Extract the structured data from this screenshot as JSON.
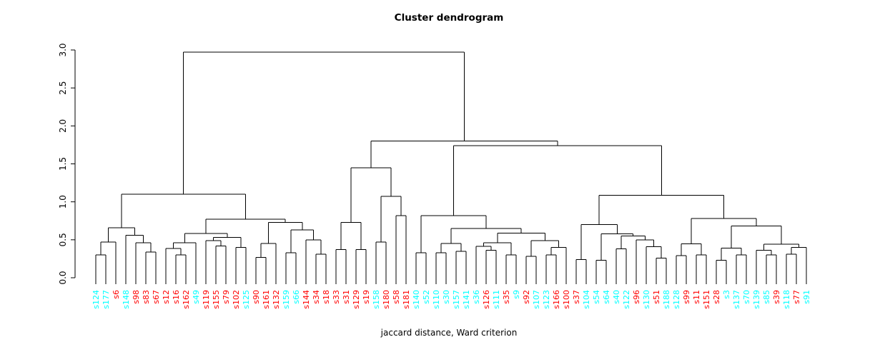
{
  "title": "Cluster dendrogram",
  "subtitle": "jaccard distance, Ward criterion",
  "colors": {
    "line": "#000000",
    "red": "#FF0000",
    "cyan": "#00FFFF",
    "background": "#FFFFFF"
  },
  "y_axis": {
    "ticks": [
      "0.0",
      "0.5",
      "1.0",
      "1.5",
      "2.0",
      "2.5",
      "3.0"
    ],
    "min": 0,
    "max": 3
  },
  "chart_data": {
    "type": "dendrogram",
    "ylim": [
      0,
      3
    ],
    "root_height": 2.97,
    "leaves": [
      {
        "label": "s124",
        "color": "cyan"
      },
      {
        "label": "s177",
        "color": "cyan"
      },
      {
        "label": "s6",
        "color": "red"
      },
      {
        "label": "s148",
        "color": "cyan"
      },
      {
        "label": "s98",
        "color": "red"
      },
      {
        "label": "s83",
        "color": "red"
      },
      {
        "label": "s67",
        "color": "red"
      },
      {
        "label": "s12",
        "color": "red"
      },
      {
        "label": "s16",
        "color": "red"
      },
      {
        "label": "s162",
        "color": "red"
      },
      {
        "label": "s49",
        "color": "cyan"
      },
      {
        "label": "s119",
        "color": "red"
      },
      {
        "label": "s155",
        "color": "red"
      },
      {
        "label": "s79",
        "color": "red"
      },
      {
        "label": "s102",
        "color": "red"
      },
      {
        "label": "s125",
        "color": "cyan"
      },
      {
        "label": "s90",
        "color": "red"
      },
      {
        "label": "s161",
        "color": "red"
      },
      {
        "label": "s132",
        "color": "red"
      },
      {
        "label": "s159",
        "color": "cyan"
      },
      {
        "label": "s66",
        "color": "cyan"
      },
      {
        "label": "s144",
        "color": "red"
      },
      {
        "label": "s34",
        "color": "red"
      },
      {
        "label": "s18",
        "color": "red"
      },
      {
        "label": "s33",
        "color": "red"
      },
      {
        "label": "s31",
        "color": "red"
      },
      {
        "label": "s129",
        "color": "red"
      },
      {
        "label": "s19",
        "color": "red"
      },
      {
        "label": "s158",
        "color": "cyan"
      },
      {
        "label": "s180",
        "color": "red"
      },
      {
        "label": "s58",
        "color": "red"
      },
      {
        "label": "s181",
        "color": "red"
      },
      {
        "label": "s140",
        "color": "cyan"
      },
      {
        "label": "s52",
        "color": "cyan"
      },
      {
        "label": "s110",
        "color": "cyan"
      },
      {
        "label": "s30",
        "color": "cyan"
      },
      {
        "label": "s157",
        "color": "cyan"
      },
      {
        "label": "s141",
        "color": "cyan"
      },
      {
        "label": "s36",
        "color": "cyan"
      },
      {
        "label": "s126",
        "color": "red"
      },
      {
        "label": "s111",
        "color": "cyan"
      },
      {
        "label": "s35",
        "color": "red"
      },
      {
        "label": "s9",
        "color": "cyan"
      },
      {
        "label": "s92",
        "color": "red"
      },
      {
        "label": "s107",
        "color": "cyan"
      },
      {
        "label": "s123",
        "color": "cyan"
      },
      {
        "label": "s166",
        "color": "red"
      },
      {
        "label": "s100",
        "color": "red"
      },
      {
        "label": "s37",
        "color": "red"
      },
      {
        "label": "s104",
        "color": "cyan"
      },
      {
        "label": "s54",
        "color": "cyan"
      },
      {
        "label": "s64",
        "color": "cyan"
      },
      {
        "label": "s40",
        "color": "cyan"
      },
      {
        "label": "s122",
        "color": "cyan"
      },
      {
        "label": "s96",
        "color": "red"
      },
      {
        "label": "s130",
        "color": "cyan"
      },
      {
        "label": "s51",
        "color": "red"
      },
      {
        "label": "s188",
        "color": "cyan"
      },
      {
        "label": "s128",
        "color": "cyan"
      },
      {
        "label": "s99",
        "color": "red"
      },
      {
        "label": "s11",
        "color": "red"
      },
      {
        "label": "s151",
        "color": "red"
      },
      {
        "label": "s28",
        "color": "red"
      },
      {
        "label": "s3",
        "color": "cyan"
      },
      {
        "label": "s137",
        "color": "cyan"
      },
      {
        "label": "s70",
        "color": "cyan"
      },
      {
        "label": "s139",
        "color": "cyan"
      },
      {
        "label": "s85",
        "color": "cyan"
      },
      {
        "label": "s39",
        "color": "red"
      },
      {
        "label": "s118",
        "color": "cyan"
      },
      {
        "label": "s77",
        "color": "red"
      },
      {
        "label": "s91",
        "color": "cyan"
      }
    ],
    "tree": {
      "h": 2.97,
      "c": [
        {
          "h": 1.1,
          "c": [
            {
              "h": 0.66,
              "c": [
                {
                  "h": 0.47,
                  "c": [
                    {
                      "h": 0.3,
                      "c": [
                        "s124",
                        "s177"
                      ]
                    },
                    "s6"
                  ]
                },
                {
                  "h": 0.56,
                  "c": [
                    "s148",
                    {
                      "h": 0.46,
                      "c": [
                        "s98",
                        {
                          "h": 0.34,
                          "c": [
                            "s83",
                            "s67"
                          ]
                        }
                      ]
                    }
                  ]
                }
              ]
            },
            {
              "h": 0.77,
              "c": [
                {
                  "h": 0.585,
                  "c": [
                    {
                      "h": 0.46,
                      "c": [
                        {
                          "h": 0.385,
                          "c": [
                            "s12",
                            {
                              "h": 0.3,
                              "c": [
                                "s16",
                                "s162"
                              ]
                            }
                          ]
                        },
                        "s49"
                      ]
                    },
                    {
                      "h": 0.53,
                      "c": [
                        {
                          "h": 0.49,
                          "c": [
                            "s119",
                            {
                              "h": 0.42,
                              "c": [
                                "s155",
                                "s79"
                              ]
                            }
                          ]
                        },
                        {
                          "h": 0.4,
                          "c": [
                            "s102",
                            "s125"
                          ]
                        }
                      ]
                    }
                  ]
                },
                {
                  "h": 0.73,
                  "c": [
                    {
                      "h": 0.45,
                      "c": [
                        {
                          "h": 0.27,
                          "c": [
                            "s90",
                            "s161"
                          ]
                        },
                        "s132"
                      ]
                    },
                    {
                      "h": 0.63,
                      "c": [
                        {
                          "h": 0.33,
                          "c": [
                            "s159",
                            "s66"
                          ]
                        },
                        {
                          "h": 0.5,
                          "c": [
                            "s144",
                            {
                              "h": 0.31,
                              "c": [
                                "s34",
                                "s18"
                              ]
                            }
                          ]
                        }
                      ]
                    }
                  ]
                }
              ]
            }
          ]
        },
        {
          "h": 1.8,
          "c": [
            {
              "h": 1.45,
              "c": [
                {
                  "h": 0.73,
                  "c": [
                    {
                      "h": 0.37,
                      "c": [
                        "s33",
                        "s31"
                      ]
                    },
                    {
                      "h": 0.37,
                      "c": [
                        "s129",
                        "s19"
                      ]
                    }
                  ]
                },
                {
                  "h": 1.07,
                  "c": [
                    {
                      "h": 0.47,
                      "c": [
                        "s158",
                        "s180"
                      ]
                    },
                    {
                      "h": 0.82,
                      "c": [
                        "s58",
                        "s181"
                      ]
                    }
                  ]
                }
              ]
            },
            {
              "h": 1.74,
              "c": [
                {
                  "h": 0.82,
                  "c": [
                    {
                      "h": 0.33,
                      "c": [
                        "s140",
                        "s52"
                      ]
                    },
                    {
                      "h": 0.65,
                      "c": [
                        {
                          "h": 0.45,
                          "c": [
                            {
                              "h": 0.33,
                              "c": [
                                "s110",
                                "s30"
                              ]
                            },
                            {
                              "h": 0.35,
                              "c": [
                                "s157",
                                "s141"
                              ]
                            }
                          ]
                        },
                        {
                          "h": 0.586,
                          "c": [
                            {
                              "h": 0.46,
                              "c": [
                                {
                                  "h": 0.414,
                                  "c": [
                                    "s36",
                                    {
                                      "h": 0.36,
                                      "c": [
                                        "s126",
                                        "s111"
                                      ]
                                    }
                                  ]
                                },
                                {
                                  "h": 0.3,
                                  "c": [
                                    "s35",
                                    "s9"
                                  ]
                                }
                              ]
                            },
                            {
                              "h": 0.49,
                              "c": [
                                {
                                  "h": 0.28,
                                  "c": [
                                    "s92",
                                    "s107"
                                  ]
                                },
                                {
                                  "h": 0.4,
                                  "c": [
                                    {
                                      "h": 0.3,
                                      "c": [
                                        "s123",
                                        "s166"
                                      ]
                                    },
                                    "s100"
                                  ]
                                }
                              ]
                            }
                          ]
                        }
                      ]
                    }
                  ]
                },
                {
                  "h": 1.088,
                  "c": [
                    {
                      "h": 0.7,
                      "c": [
                        {
                          "h": 0.24,
                          "c": [
                            "s37",
                            "s104"
                          ]
                        },
                        {
                          "h": 0.577,
                          "c": [
                            {
                              "h": 0.23,
                              "c": [
                                "s54",
                                "s64"
                              ]
                            },
                            {
                              "h": 0.55,
                              "c": [
                                {
                                  "h": 0.38,
                                  "c": [
                                    "s40",
                                    "s122"
                                  ]
                                },
                                {
                                  "h": 0.5,
                                  "c": [
                                    "s96",
                                    {
                                      "h": 0.41,
                                      "c": [
                                        "s130",
                                        {
                                          "h": 0.26,
                                          "c": [
                                            "s51",
                                            "s188"
                                          ]
                                        }
                                      ]
                                    }
                                  ]
                                }
                              ]
                            }
                          ]
                        }
                      ]
                    },
                    {
                      "h": 0.78,
                      "c": [
                        {
                          "h": 0.445,
                          "c": [
                            {
                              "h": 0.29,
                              "c": [
                                "s128",
                                "s99"
                              ]
                            },
                            {
                              "h": 0.3,
                              "c": [
                                "s11",
                                "s151"
                              ]
                            }
                          ]
                        },
                        {
                          "h": 0.68,
                          "c": [
                            {
                              "h": 0.389,
                              "c": [
                                {
                                  "h": 0.23,
                                  "c": [
                                    "s28",
                                    "s3"
                                  ]
                                },
                                {
                                  "h": 0.3,
                                  "c": [
                                    "s137",
                                    "s70"
                                  ]
                                }
                              ]
                            },
                            {
                              "h": 0.44,
                              "c": [
                                {
                                  "h": 0.36,
                                  "c": [
                                    "s139",
                                    {
                                      "h": 0.3,
                                      "c": [
                                        "s85",
                                        "s39"
                                      ]
                                    }
                                  ]
                                },
                                {
                                  "h": 0.4,
                                  "c": [
                                    {
                                      "h": 0.31,
                                      "c": [
                                        "s118",
                                        "s77"
                                      ]
                                    },
                                    "s91"
                                  ]
                                }
                              ]
                            }
                          ]
                        }
                      ]
                    }
                  ]
                }
              ]
            }
          ]
        }
      ]
    }
  }
}
